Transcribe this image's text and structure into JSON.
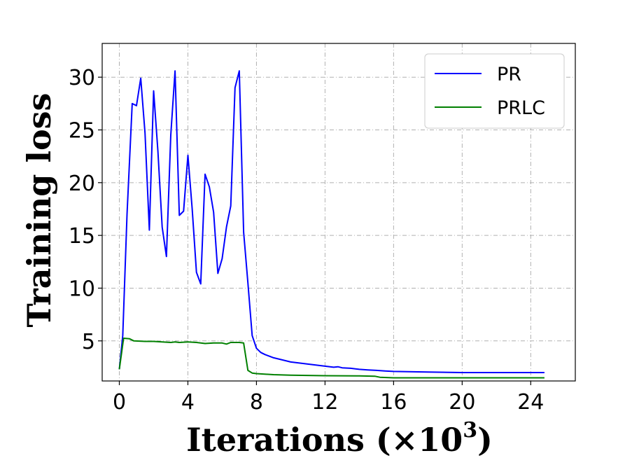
{
  "chart_data": {
    "type": "line",
    "title": "",
    "xlabel": "Iterations (×10",
    "xlabel_exponent": "3",
    "xlabel_close": ")",
    "ylabel": "Training loss",
    "xlim": [
      -1,
      26.6
    ],
    "ylim": [
      1.2,
      33.2
    ],
    "xticks": [
      0,
      4,
      8,
      12,
      16,
      20,
      24
    ],
    "yticks": [
      5,
      10,
      15,
      20,
      25,
      30
    ],
    "grid": true,
    "legend_position": "top-right",
    "series": [
      {
        "name": "PR",
        "color": "#0000ff",
        "x": [
          0,
          0.2,
          0.45,
          0.75,
          1.0,
          1.25,
          1.5,
          1.75,
          2.0,
          2.25,
          2.5,
          2.75,
          3.0,
          3.25,
          3.5,
          3.75,
          4.0,
          4.25,
          4.5,
          4.75,
          5.0,
          5.25,
          5.5,
          5.75,
          6.0,
          6.25,
          6.5,
          6.75,
          7.0,
          7.25,
          7.5,
          7.75,
          8.0,
          8.25,
          8.5,
          9.0,
          9.5,
          10.0,
          10.5,
          11.0,
          11.5,
          12.0,
          12.5,
          12.75,
          13.0,
          13.5,
          14.0,
          14.5,
          15.0,
          15.5,
          16.0,
          18.0,
          20.0,
          22.0,
          24.0,
          24.8
        ],
        "y": [
          2.3,
          5.5,
          17.0,
          27.5,
          27.3,
          29.9,
          24.7,
          15.5,
          28.7,
          23.0,
          15.8,
          13.0,
          24.5,
          30.6,
          16.9,
          17.3,
          22.6,
          17.5,
          11.5,
          10.4,
          20.8,
          19.6,
          17.2,
          11.4,
          12.8,
          15.8,
          17.8,
          29.0,
          30.6,
          15.3,
          10.5,
          5.5,
          4.3,
          3.9,
          3.7,
          3.4,
          3.2,
          3.0,
          2.9,
          2.8,
          2.7,
          2.6,
          2.5,
          2.55,
          2.45,
          2.4,
          2.3,
          2.25,
          2.2,
          2.15,
          2.1,
          2.05,
          2.0,
          2.0,
          2.0,
          2.0
        ]
      },
      {
        "name": "PRLC",
        "color": "#008000",
        "x": [
          0,
          0.25,
          0.6,
          0.85,
          1.5,
          2.0,
          2.5,
          3.0,
          3.25,
          3.5,
          4.0,
          4.5,
          5.0,
          5.5,
          6.0,
          6.25,
          6.5,
          6.75,
          7.0,
          7.25,
          7.5,
          7.75,
          8.0,
          9.0,
          10.0,
          12.0,
          14.0,
          14.9,
          15.2,
          16.0,
          20.0,
          24.8
        ],
        "y": [
          2.3,
          5.25,
          5.2,
          5.0,
          4.95,
          4.95,
          4.9,
          4.85,
          4.9,
          4.85,
          4.9,
          4.85,
          4.75,
          4.8,
          4.8,
          4.7,
          4.85,
          4.85,
          4.85,
          4.8,
          2.2,
          1.95,
          1.9,
          1.8,
          1.75,
          1.7,
          1.68,
          1.65,
          1.55,
          1.5,
          1.5,
          1.5
        ]
      }
    ]
  }
}
